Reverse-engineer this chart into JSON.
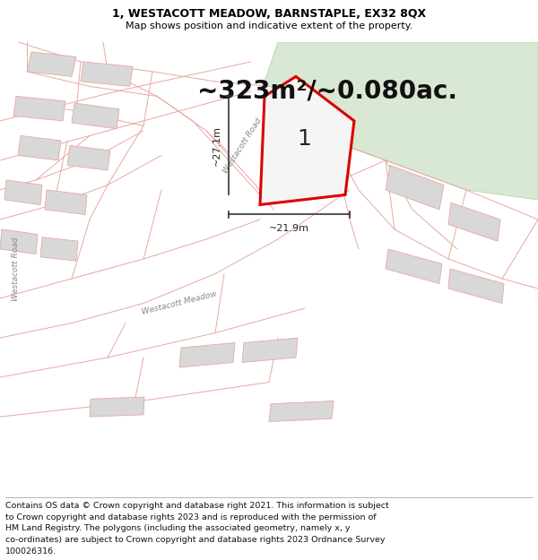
{
  "title_line1": "1, WESTACOTT MEADOW, BARNSTAPLE, EX32 8QX",
  "title_line2": "Map shows position and indicative extent of the property.",
  "area_label": "~323m²/~0.080ac.",
  "plot_number": "1",
  "dim_vertical": "~27.1m",
  "dim_horizontal": "~21.9m",
  "footer_lines": [
    "Contains OS data © Crown copyright and database right 2021. This information is subject",
    "to Crown copyright and database rights 2023 and is reproduced with the permission of",
    "HM Land Registry. The polygons (including the associated geometry, namely x, y",
    "co-ordinates) are subject to Crown copyright and database rights 2023 Ordnance Survey",
    "100026316."
  ],
  "map_bg": "#ffffff",
  "plot_fill": "#f5f5f5",
  "plot_border": "#dd0000",
  "boundary_color": "#e8a8a0",
  "building_fill": "#d8d8d8",
  "building_border": "#c0c0c0",
  "green_fill": "#d8e8d2",
  "green_border": "#c0d8b8",
  "dim_line_color": "#333333",
  "road_label_color": "#888888",
  "area_text_color": "#111111",
  "title_fontsize": 9,
  "subtitle_fontsize": 8,
  "area_fontsize": 20,
  "footer_fontsize": 6.8,
  "plot_label_fontsize": 18
}
